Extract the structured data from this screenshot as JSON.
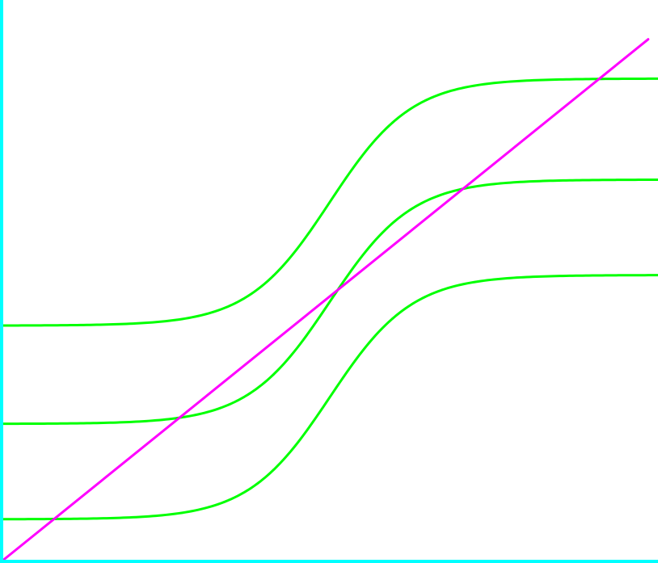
{
  "chart_data": {
    "type": "line",
    "title": "",
    "xlabel": "",
    "ylabel": "",
    "xlim": [
      0,
      1
    ],
    "ylim": [
      0,
      1
    ],
    "grid": false,
    "legend": "none",
    "axis_color": "#00ffff",
    "colors": {
      "curve": "#00ff00",
      "diagonal": "#ff00ff"
    },
    "sigmoid_params": {
      "center": 0.5,
      "steepness": 16
    },
    "series": [
      {
        "kind": "sigmoid",
        "low": 0.42,
        "high": 0.86
      },
      {
        "kind": "sigmoid",
        "low": 0.245,
        "high": 0.68
      },
      {
        "kind": "sigmoid",
        "low": 0.075,
        "high": 0.51
      },
      {
        "kind": "linear",
        "x": [
          0,
          0.985
        ],
        "y": [
          0,
          0.93
        ]
      }
    ]
  }
}
